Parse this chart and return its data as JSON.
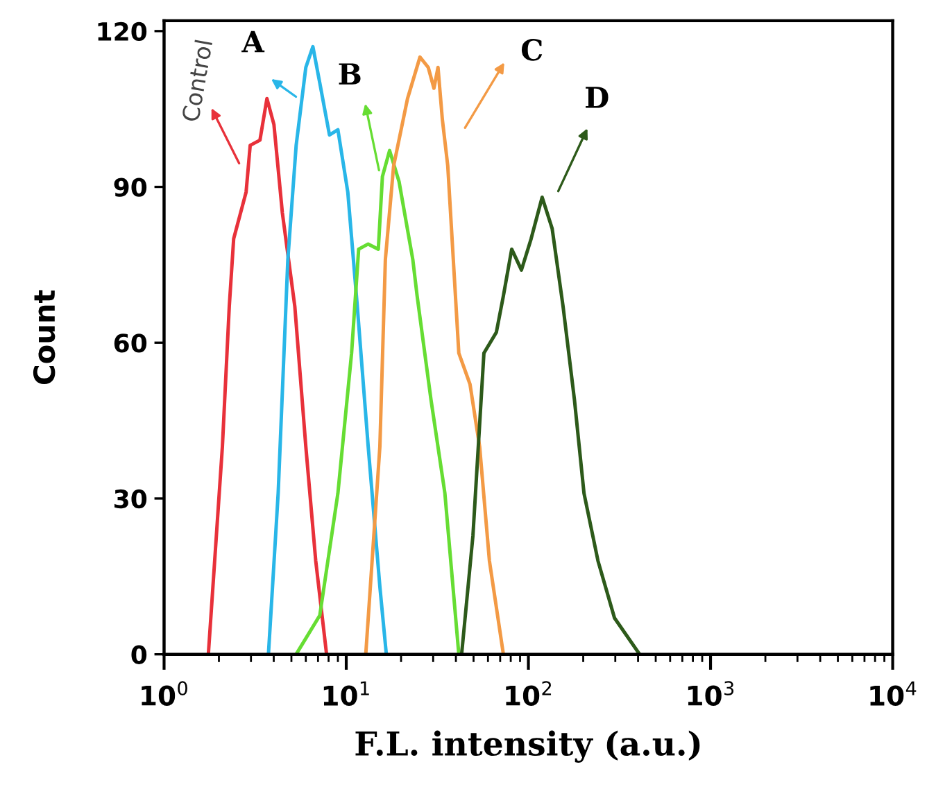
{
  "chart_data": {
    "type": "line",
    "xlabel": "F.L. intensity (a.u.)",
    "ylabel": "Count",
    "log": "x",
    "xlim": [
      1,
      10000
    ],
    "xticks": [
      {
        "value": 1,
        "label": "10$^{0}$"
      },
      {
        "value": 10,
        "label": "10$^{1}$"
      },
      {
        "value": 100,
        "label": "10$^{2}$"
      },
      {
        "value": 1000,
        "label": "10$^{3}$"
      },
      {
        "value": 10000,
        "label": "10$^{4}$"
      }
    ],
    "ylim": [
      0,
      122
    ],
    "yticks": [
      0,
      30,
      60,
      90,
      120
    ],
    "grid": false,
    "legend": false,
    "marker": "none",
    "line_style": "solid",
    "series": [
      {
        "color": "#e8313a",
        "x": [
          1.75,
          2.09,
          2.28,
          2.41,
          2.82,
          2.97,
          3.36,
          3.67,
          4.01,
          4.46,
          5.22,
          6.0,
          6.8,
          7.8
        ],
        "values": [
          0,
          40,
          67,
          80,
          89,
          98,
          99,
          107,
          102,
          85,
          67,
          40,
          18,
          0
        ]
      },
      {
        "color": "#29b6e8",
        "x": [
          3.74,
          4.23,
          4.78,
          5.31,
          6.0,
          6.56,
          7.16,
          8.09,
          9.0,
          10.2,
          11.5,
          13.2,
          15.3,
          16.6
        ],
        "values": [
          0,
          31,
          76,
          98,
          113,
          117,
          110,
          100,
          101,
          89,
          67,
          40,
          13,
          0
        ]
      },
      {
        "color": "#66dd33",
        "x": [
          5.31,
          7.16,
          9.0,
          10.7,
          11.7,
          13.2,
          15.0,
          15.8,
          17.3,
          19.5,
          23.2,
          24.5,
          29.2,
          34.8,
          41.5
        ],
        "values": [
          0,
          7.5,
          31,
          58,
          78,
          79,
          78,
          92,
          97,
          91,
          76,
          69,
          49,
          31,
          0
        ]
      },
      {
        "color": "#f39a45",
        "x": [
          12.8,
          15.3,
          16.4,
          18.2,
          21.7,
          25.4,
          28.2,
          30.3,
          31.9,
          33.7,
          36.1,
          41.5,
          47.8,
          54.0,
          61.1,
          72.9
        ],
        "values": [
          0,
          40,
          76,
          94,
          107,
          115,
          113,
          109,
          113,
          103,
          94,
          58,
          52,
          40,
          18,
          0
        ]
      },
      {
        "color": "#2d5a1a",
        "x": [
          43.0,
          49.6,
          57.0,
          66.7,
          72.9,
          81.0,
          91.6,
          103.5,
          119,
          135,
          155,
          179,
          202,
          241,
          297,
          408
        ],
        "values": [
          0,
          22.8,
          58,
          62,
          69,
          78,
          74,
          80,
          88,
          82,
          67,
          49,
          31,
          18,
          7,
          0
        ]
      }
    ],
    "annotations": [
      "Control",
      "A",
      "B",
      "C",
      "D"
    ]
  }
}
